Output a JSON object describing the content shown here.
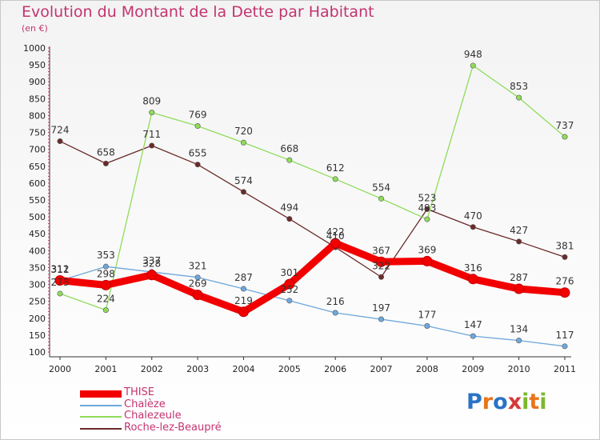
{
  "page": {
    "title": "Evolution du Montant de la Dette par Habitant",
    "subtitle": "(en €)"
  },
  "logo": {
    "letters": [
      "P",
      "r",
      "o",
      "x",
      "i",
      "t",
      "i"
    ],
    "colors": [
      "#2a73c5",
      "#e8751a",
      "#2a73c5",
      "#d43a3a",
      "#7cb82f",
      "#e8751a",
      "#7cb82f"
    ]
  },
  "chart_data": {
    "type": "line",
    "title": "Evolution du Montant de la Dette par Habitant",
    "subtitle": "(en €)",
    "x": [
      "2000",
      "2001",
      "2002",
      "2003",
      "2004",
      "2005",
      "2006",
      "2007",
      "2008",
      "2009",
      "2010",
      "2011"
    ],
    "ylim": [
      100,
      1000
    ],
    "yticks": [
      100,
      150,
      200,
      250,
      300,
      350,
      400,
      450,
      500,
      550,
      600,
      650,
      700,
      750,
      800,
      850,
      900,
      950,
      1000
    ],
    "grid": false,
    "legend_position": "bottom-left",
    "series": [
      {
        "name": "THISE",
        "color": "#f20000",
        "values": [
          312,
          298,
          328,
          269,
          219,
          301,
          422,
          367,
          369,
          316,
          287,
          276
        ]
      },
      {
        "name": "Chalèze",
        "color": "#6fa8dc",
        "values": [
          311,
          353,
          337,
          321,
          287,
          252,
          216,
          197,
          177,
          147,
          134,
          117
        ]
      },
      {
        "name": "Chalezeule",
        "color": "#8fdc5a",
        "values": [
          273,
          224,
          809,
          769,
          720,
          668,
          612,
          554,
          493,
          948,
          853,
          737
        ]
      },
      {
        "name": "Roche-lez-Beaupré",
        "color": "#6b2a2a",
        "values": [
          724,
          658,
          711,
          655,
          574,
          494,
          410,
          322,
          523,
          470,
          427,
          381
        ]
      }
    ]
  }
}
